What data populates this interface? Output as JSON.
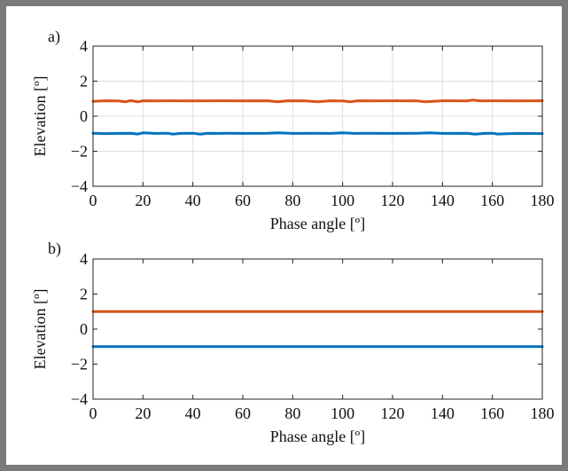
{
  "chart_data": [
    {
      "type": "line",
      "panel_label": "a)",
      "xlabel": "Phase angle [º]",
      "ylabel": "Elevation [º]",
      "xlim": [
        0,
        180
      ],
      "ylim": [
        -4,
        4
      ],
      "xticks": [
        0,
        20,
        40,
        60,
        80,
        100,
        120,
        140,
        160,
        180
      ],
      "yticks": [
        4,
        2,
        0,
        -2,
        -4
      ],
      "ytick_labels": [
        "4",
        "2",
        "0",
        "−2",
        "−4"
      ],
      "grid": true,
      "series": [
        {
          "color": "#d95319",
          "x": [
            0,
            5,
            10,
            13,
            15,
            18,
            20,
            25,
            30,
            40,
            50,
            60,
            70,
            74,
            78,
            85,
            90,
            95,
            100,
            103,
            106,
            110,
            120,
            130,
            133,
            140,
            150,
            152,
            155,
            160,
            170,
            180
          ],
          "values": [
            0.85,
            0.88,
            0.87,
            0.82,
            0.89,
            0.82,
            0.88,
            0.87,
            0.88,
            0.87,
            0.88,
            0.87,
            0.88,
            0.82,
            0.88,
            0.87,
            0.82,
            0.88,
            0.87,
            0.82,
            0.88,
            0.87,
            0.88,
            0.87,
            0.82,
            0.88,
            0.87,
            0.92,
            0.87,
            0.88,
            0.87,
            0.88
          ]
        },
        {
          "color": "#0072bd",
          "x": [
            0,
            5,
            10,
            15,
            18,
            20,
            25,
            30,
            32,
            35,
            40,
            43,
            46,
            50,
            55,
            60,
            70,
            74,
            80,
            90,
            95,
            100,
            105,
            110,
            120,
            130,
            135,
            140,
            150,
            153,
            157,
            160,
            162,
            170,
            180
          ],
          "values": [
            -0.97,
            -0.99,
            -0.98,
            -0.97,
            -1.02,
            -0.95,
            -0.98,
            -0.97,
            -1.03,
            -0.98,
            -0.97,
            -1.03,
            -0.97,
            -0.98,
            -0.97,
            -0.98,
            -0.97,
            -0.95,
            -0.98,
            -0.97,
            -0.98,
            -0.95,
            -0.98,
            -0.97,
            -0.98,
            -0.97,
            -0.95,
            -0.98,
            -0.97,
            -1.03,
            -0.98,
            -0.97,
            -1.02,
            -0.98,
            -0.99
          ]
        }
      ]
    },
    {
      "type": "line",
      "panel_label": "b)",
      "xlabel": "Phase angle [º]",
      "ylabel": "Elevation [º]",
      "xlim": [
        0,
        180
      ],
      "ylim": [
        -4,
        4
      ],
      "xticks": [
        0,
        20,
        40,
        60,
        80,
        100,
        120,
        140,
        160,
        180
      ],
      "yticks": [
        4,
        2,
        0,
        -2,
        -4
      ],
      "ytick_labels": [
        "4",
        "2",
        "0",
        "−2",
        "−4"
      ],
      "grid": false,
      "series": [
        {
          "color": "#d95319",
          "x": [
            0,
            180
          ],
          "values": [
            1,
            1
          ]
        },
        {
          "color": "#0072bd",
          "x": [
            0,
            180
          ],
          "values": [
            -1,
            -1
          ]
        }
      ]
    }
  ]
}
